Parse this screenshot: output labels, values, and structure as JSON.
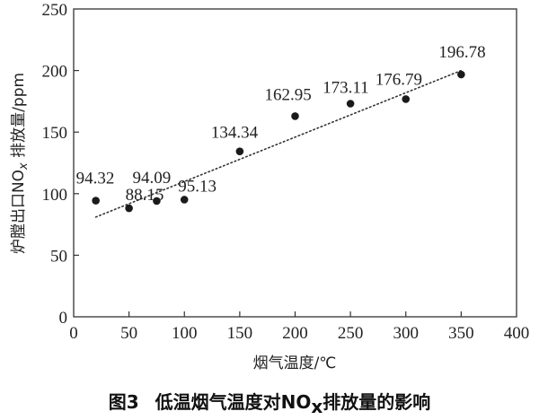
{
  "chart_data": {
    "type": "scatter",
    "x": [
      20,
      50,
      75,
      100,
      150,
      200,
      250,
      300,
      350
    ],
    "y": [
      94.32,
      88.15,
      94.09,
      95.13,
      134.34,
      162.95,
      173.11,
      176.79,
      196.78
    ],
    "point_labels": [
      "94.32",
      "88.15",
      "94.09",
      "95.13",
      "134.34",
      "162.95",
      "173.11",
      "176.79",
      "196.78"
    ],
    "trendline": {
      "style": "dotted",
      "x": [
        20,
        350
      ],
      "y": [
        81,
        200
      ]
    },
    "xlim": [
      0,
      400
    ],
    "ylim": [
      0,
      250
    ],
    "xticks": [
      0,
      50,
      100,
      150,
      200,
      250,
      300,
      350,
      400
    ],
    "yticks": [
      0,
      50,
      100,
      150,
      200,
      250
    ],
    "xlabel": "烟气温度/℃",
    "ylabel_parts": {
      "before": "炉膛出口NO",
      "sub": "x",
      "after": " 排放量/ppm"
    },
    "grid": false,
    "legend": "none"
  },
  "caption": {
    "figure_no": "图3",
    "before": "低温烟气温度对",
    "nox_main": "NO",
    "nox_sub": "x",
    "after": "排放量的影响"
  }
}
